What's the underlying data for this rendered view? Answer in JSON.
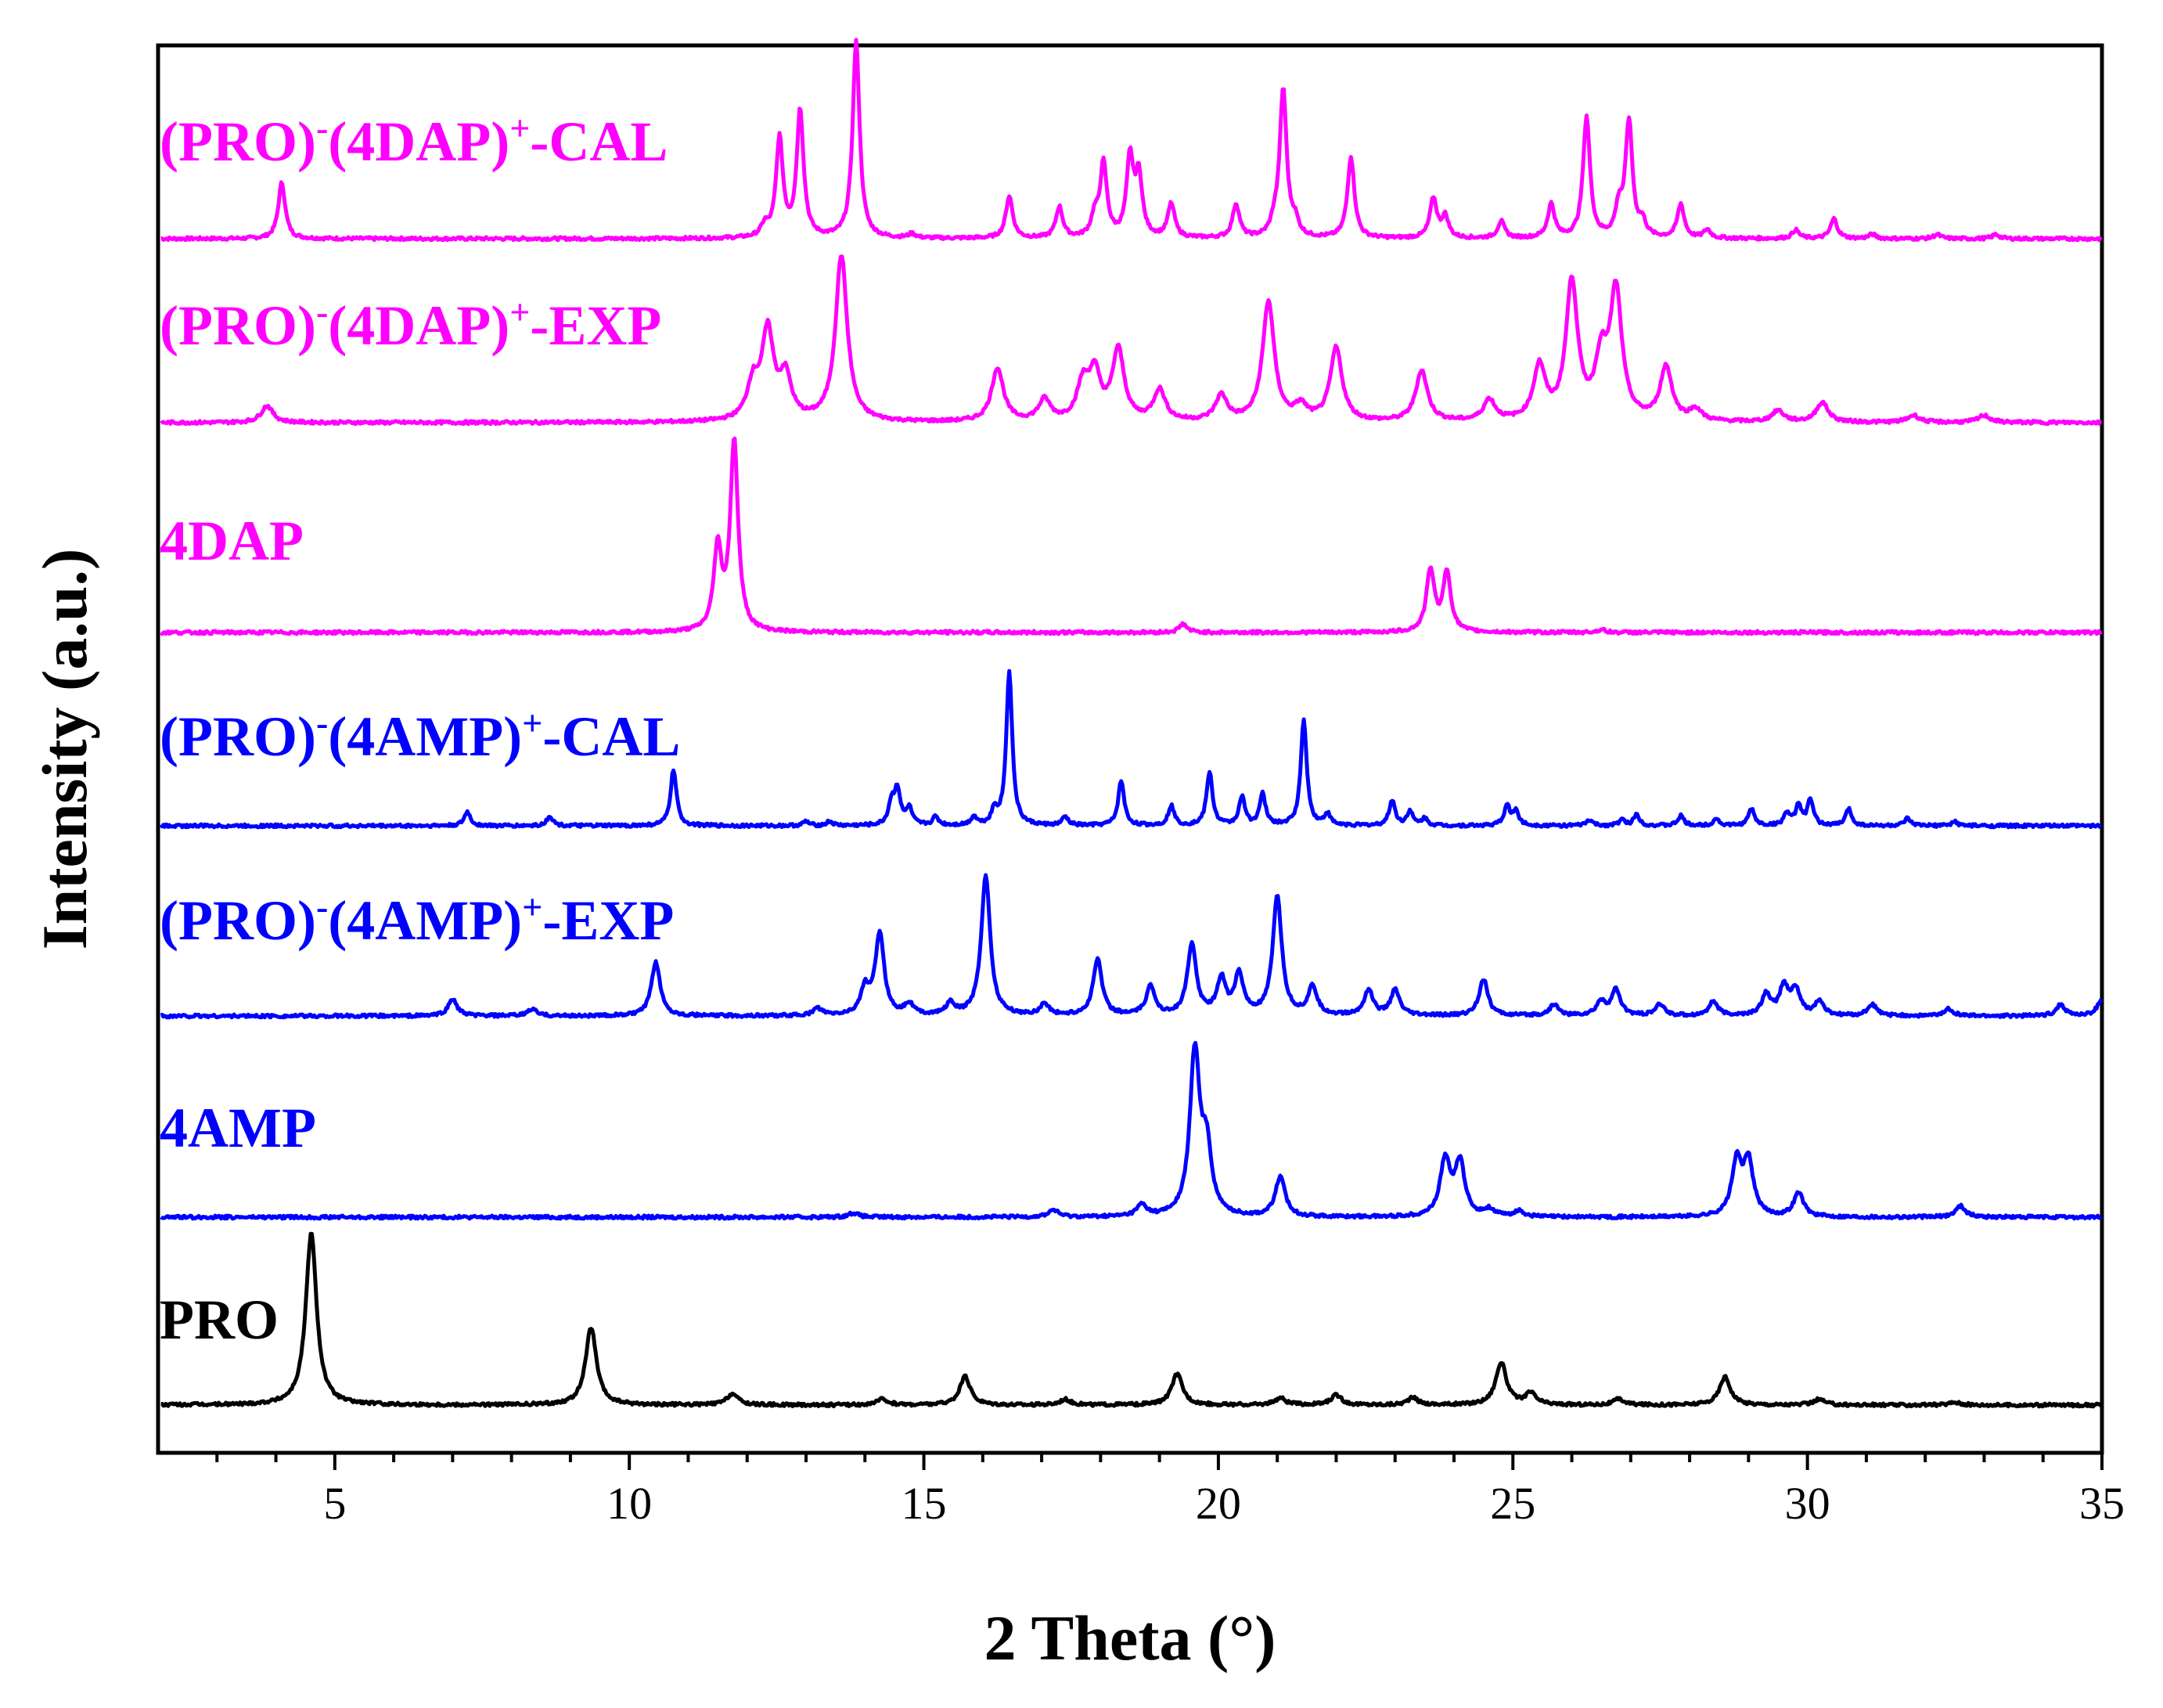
{
  "chart_data": {
    "type": "line",
    "title": "",
    "xlabel": "2 Theta (°)",
    "ylabel": "Intensity (a.u.)",
    "xlim": [
      2,
      35
    ],
    "x_ticks": [
      5,
      10,
      15,
      20,
      25,
      30,
      35
    ],
    "grid": false,
    "legend": "inline labels above each trace",
    "series": [
      {
        "name": "(PRO)-(4DAP)+-CAL",
        "label_parts": [
          "(PRO)",
          "-",
          "(4DAP)",
          "+",
          "-CAL"
        ],
        "color": "#ff00ff",
        "baseline": 0,
        "peaks": [
          [
            4.1,
            40
          ],
          [
            12.3,
            8
          ],
          [
            12.55,
            70
          ],
          [
            12.9,
            90
          ],
          [
            13.85,
            140
          ],
          [
            14.8,
            3
          ],
          [
            16.45,
            30
          ],
          [
            17.3,
            22
          ],
          [
            17.9,
            14
          ],
          [
            18.05,
            52
          ],
          [
            18.5,
            55
          ],
          [
            18.65,
            42
          ],
          [
            19.2,
            24
          ],
          [
            20.3,
            24
          ],
          [
            20.95,
            8
          ],
          [
            21.1,
            105
          ],
          [
            21.3,
            10
          ],
          [
            22.25,
            58
          ],
          [
            23.65,
            28
          ],
          [
            23.85,
            15
          ],
          [
            24.8,
            12
          ],
          [
            25.65,
            24
          ],
          [
            26.25,
            86
          ],
          [
            26.8,
            20
          ],
          [
            26.97,
            82
          ],
          [
            27.2,
            10
          ],
          [
            27.85,
            24
          ],
          [
            28.3,
            6
          ],
          [
            29.8,
            6
          ],
          [
            30.45,
            14
          ],
          [
            31.1,
            3
          ],
          [
            32.2,
            3
          ],
          [
            33.2,
            3
          ]
        ],
        "widths": 0.07
      },
      {
        "name": "(PRO)-(4DAP)+-EXP",
        "label_parts": [
          "(PRO)",
          "-",
          "(4DAP)",
          "+",
          "-EXP"
        ],
        "color": "#ff00ff",
        "baseline": 0,
        "peaks": [
          [
            3.85,
            12
          ],
          [
            12.1,
            25
          ],
          [
            12.35,
            62
          ],
          [
            12.65,
            30
          ],
          [
            13.6,
            118
          ],
          [
            16.25,
            38
          ],
          [
            17.05,
            15
          ],
          [
            17.7,
            25
          ],
          [
            17.9,
            32
          ],
          [
            18.3,
            50
          ],
          [
            19.0,
            22
          ],
          [
            20.05,
            18
          ],
          [
            20.85,
            85
          ],
          [
            21.4,
            10
          ],
          [
            22.0,
            52
          ],
          [
            23.45,
            36
          ],
          [
            24.6,
            15
          ],
          [
            25.45,
            38
          ],
          [
            26.0,
            98
          ],
          [
            26.5,
            40
          ],
          [
            26.75,
            90
          ],
          [
            27.6,
            38
          ],
          [
            28.1,
            8
          ],
          [
            29.5,
            8
          ],
          [
            30.25,
            14
          ],
          [
            31.8,
            5
          ],
          [
            33.0,
            5
          ]
        ],
        "widths": 0.12
      },
      {
        "name": "4DAP",
        "label_parts": [
          "4DAP"
        ],
        "color": "#ff00ff",
        "baseline": 0,
        "peaks": [
          [
            11.5,
            58
          ],
          [
            11.78,
            135
          ],
          [
            19.4,
            6
          ],
          [
            23.6,
            44
          ],
          [
            23.88,
            42
          ],
          [
            26.5,
            2
          ]
        ],
        "widths": 0.08
      },
      {
        "name": "(PRO)-(4AMP)+-CAL",
        "label_parts": [
          "(PRO)",
          "-",
          "(4AMP)",
          "+",
          "-CAL"
        ],
        "color": "#0000ff",
        "baseline": 0,
        "peaks": [
          [
            7.25,
            10
          ],
          [
            8.65,
            7
          ],
          [
            10.75,
            40
          ],
          [
            13.0,
            3
          ],
          [
            13.4,
            3
          ],
          [
            14.45,
            15
          ],
          [
            14.55,
            25
          ],
          [
            14.75,
            12
          ],
          [
            15.2,
            6
          ],
          [
            15.85,
            6
          ],
          [
            16.2,
            10
          ],
          [
            16.45,
            110
          ],
          [
            17.4,
            6
          ],
          [
            18.35,
            32
          ],
          [
            19.2,
            14
          ],
          [
            19.85,
            38
          ],
          [
            20.4,
            20
          ],
          [
            20.75,
            22
          ],
          [
            21.45,
            75
          ],
          [
            21.85,
            8
          ],
          [
            22.95,
            18
          ],
          [
            23.25,
            10
          ],
          [
            23.5,
            5
          ],
          [
            24.9,
            14
          ],
          [
            25.05,
            10
          ],
          [
            26.3,
            4
          ],
          [
            26.85,
            4
          ],
          [
            27.1,
            8
          ],
          [
            27.85,
            7
          ],
          [
            28.45,
            5
          ],
          [
            29.05,
            12
          ],
          [
            29.65,
            9
          ],
          [
            29.85,
            14
          ],
          [
            30.05,
            18
          ],
          [
            30.7,
            12
          ],
          [
            31.7,
            5
          ],
          [
            32.5,
            3
          ]
        ],
        "widths": 0.06
      },
      {
        "name": "(PRO)-(4AMP)+-EXP",
        "label_parts": [
          "(PRO)",
          "-",
          "(4AMP)",
          "+",
          "-EXP"
        ],
        "color": "#0000ff",
        "baseline": 0,
        "peaks": [
          [
            7.0,
            12
          ],
          [
            8.35,
            5
          ],
          [
            10.45,
            38
          ],
          [
            13.2,
            5
          ],
          [
            14.0,
            18
          ],
          [
            14.25,
            58
          ],
          [
            14.75,
            8
          ],
          [
            15.45,
            8
          ],
          [
            16.05,
            100
          ],
          [
            17.05,
            8
          ],
          [
            17.95,
            40
          ],
          [
            18.85,
            20
          ],
          [
            19.55,
            50
          ],
          [
            20.05,
            25
          ],
          [
            20.35,
            28
          ],
          [
            21.0,
            85
          ],
          [
            21.6,
            20
          ],
          [
            22.55,
            18
          ],
          [
            23.0,
            18
          ],
          [
            24.5,
            26
          ],
          [
            25.7,
            8
          ],
          [
            26.5,
            10
          ],
          [
            26.75,
            18
          ],
          [
            27.5,
            8
          ],
          [
            28.4,
            10
          ],
          [
            29.3,
            15
          ],
          [
            29.6,
            20
          ],
          [
            29.8,
            18
          ],
          [
            30.2,
            10
          ],
          [
            31.1,
            8
          ],
          [
            32.4,
            5
          ],
          [
            34.3,
            8
          ],
          [
            35.0,
            12
          ]
        ],
        "widths": 0.09
      },
      {
        "name": "4AMP",
        "label_parts": [
          "4AMP"
        ],
        "color": "#0000ff",
        "baseline": 0,
        "peaks": [
          [
            13.8,
            3
          ],
          [
            17.2,
            5
          ],
          [
            18.7,
            8
          ],
          [
            19.6,
            115
          ],
          [
            19.8,
            45
          ],
          [
            21.05,
            28
          ],
          [
            23.85,
            40
          ],
          [
            24.1,
            38
          ],
          [
            24.6,
            5
          ],
          [
            25.1,
            4
          ],
          [
            28.8,
            38
          ],
          [
            29.0,
            38
          ],
          [
            29.85,
            17
          ],
          [
            32.6,
            8
          ]
        ],
        "widths": 0.1
      },
      {
        "name": "PRO",
        "label_parts": [
          "PRO"
        ],
        "color": "#000000",
        "baseline": 0,
        "peaks": [
          [
            4.6,
            122
          ],
          [
            9.35,
            55
          ],
          [
            11.75,
            8
          ],
          [
            14.3,
            4
          ],
          [
            15.7,
            20
          ],
          [
            17.4,
            4
          ],
          [
            19.3,
            22
          ],
          [
            21.05,
            5
          ],
          [
            22.0,
            7
          ],
          [
            23.3,
            5
          ],
          [
            24.8,
            30
          ],
          [
            25.3,
            8
          ],
          [
            26.8,
            4
          ],
          [
            28.6,
            20
          ],
          [
            30.2,
            4
          ],
          [
            32.5,
            2
          ]
        ],
        "widths": 0.11
      }
    ]
  }
}
